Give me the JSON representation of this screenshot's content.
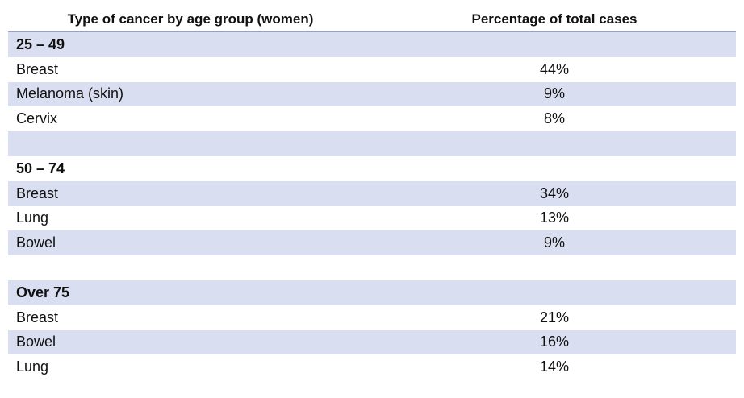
{
  "header": {
    "col1": "Type of cancer by age group (women)",
    "col2": "Percentage of total cases"
  },
  "groups": [
    {
      "title": "25 – 49",
      "rows": [
        {
          "type": "Breast",
          "pct": "44%"
        },
        {
          "type": "Melanoma (skin)",
          "pct": "9%"
        },
        {
          "type": "Cervix",
          "pct": "8%"
        }
      ]
    },
    {
      "title": "50 – 74",
      "rows": [
        {
          "type": "Breast",
          "pct": "34%"
        },
        {
          "type": "Lung",
          "pct": "13%"
        },
        {
          "type": "Bowel",
          "pct": "9%"
        }
      ]
    },
    {
      "title": "Over 75",
      "rows": [
        {
          "type": "Breast",
          "pct": "21%"
        },
        {
          "type": "Bowel",
          "pct": "16%"
        },
        {
          "type": "Lung",
          "pct": "14%"
        }
      ]
    }
  ],
  "colors": {
    "band": "#d9dff0",
    "header_rule": "#8fa3cf"
  }
}
